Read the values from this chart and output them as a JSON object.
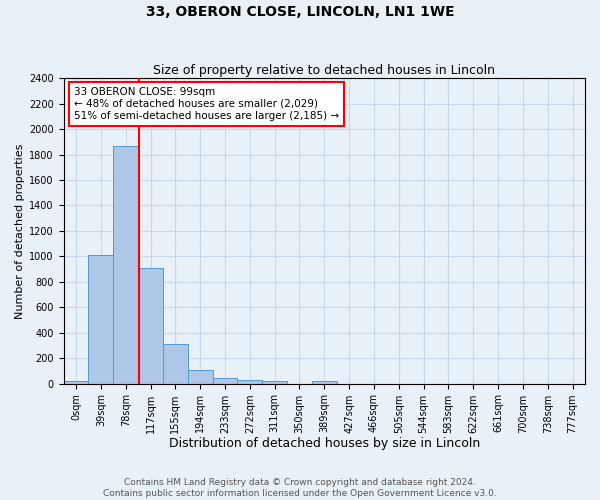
{
  "title": "33, OBERON CLOSE, LINCOLN, LN1 1WE",
  "subtitle": "Size of property relative to detached houses in Lincoln",
  "xlabel": "Distribution of detached houses by size in Lincoln",
  "ylabel": "Number of detached properties",
  "categories": [
    "0sqm",
    "39sqm",
    "78sqm",
    "117sqm",
    "155sqm",
    "194sqm",
    "233sqm",
    "272sqm",
    "311sqm",
    "350sqm",
    "389sqm",
    "427sqm",
    "466sqm",
    "505sqm",
    "544sqm",
    "583sqm",
    "622sqm",
    "661sqm",
    "700sqm",
    "738sqm",
    "777sqm"
  ],
  "bar_values": [
    20,
    1010,
    1870,
    910,
    310,
    105,
    48,
    25,
    18,
    0,
    18,
    0,
    0,
    0,
    0,
    0,
    0,
    0,
    0,
    0,
    0
  ],
  "bar_color": "#aec6e8",
  "bar_edge_color": "#5599cc",
  "vline_color": "red",
  "annotation_text": "33 OBERON CLOSE: 99sqm\n← 48% of detached houses are smaller (2,029)\n51% of semi-detached houses are larger (2,185) →",
  "ylim": [
    0,
    2400
  ],
  "yticks": [
    0,
    200,
    400,
    600,
    800,
    1000,
    1200,
    1400,
    1600,
    1800,
    2000,
    2200,
    2400
  ],
  "grid_color": "#c8d8e8",
  "bg_color": "#e8f0f8",
  "footer1": "Contains HM Land Registry data © Crown copyright and database right 2024.",
  "footer2": "Contains public sector information licensed under the Open Government Licence v3.0.",
  "title_fontsize": 10,
  "subtitle_fontsize": 9,
  "xlabel_fontsize": 9,
  "ylabel_fontsize": 8,
  "tick_fontsize": 7,
  "footer_fontsize": 6.5,
  "annotation_fontsize": 7.5
}
